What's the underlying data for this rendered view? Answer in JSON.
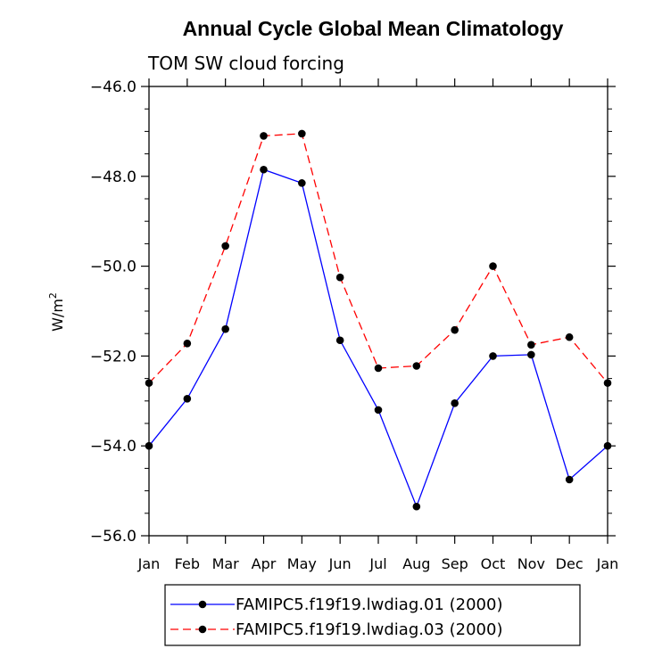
{
  "chart_data": {
    "type": "line",
    "title": "Annual Cycle Global Mean Climatology",
    "subtitle": "TOM SW cloud forcing",
    "ylabel_base": "W/m",
    "ylabel_sup": "2",
    "xlabel": "",
    "categories": [
      "Jan",
      "Feb",
      "Mar",
      "Apr",
      "May",
      "Jun",
      "Jul",
      "Aug",
      "Sep",
      "Oct",
      "Nov",
      "Dec",
      "Jan"
    ],
    "ylim": [
      -56.0,
      -46.0
    ],
    "yticks": [
      -56.0,
      -54.0,
      -52.0,
      -50.0,
      -48.0,
      -46.0
    ],
    "ytick_labels": [
      "−56.0",
      "−54.0",
      "−52.0",
      "−50.0",
      "−48.0",
      "−46.0"
    ],
    "series": [
      {
        "name": "FAMIPC5.f19f19.lwdiag.01 (2000)",
        "color": "#0000ff",
        "dash": "solid",
        "values": [
          -54.0,
          -52.95,
          -51.4,
          -47.85,
          -48.15,
          -51.65,
          -53.2,
          -55.35,
          -53.05,
          -52.0,
          -51.97,
          -54.75,
          -54.0
        ]
      },
      {
        "name": "FAMIPC5.f19f19.lwdiag.03 (2000)",
        "color": "#ff0000",
        "dash": "dashed",
        "values": [
          -52.6,
          -51.72,
          -49.55,
          -47.1,
          -47.05,
          -50.25,
          -52.27,
          -52.22,
          -51.42,
          -50.0,
          -51.75,
          -51.58,
          -52.6
        ]
      }
    ]
  }
}
